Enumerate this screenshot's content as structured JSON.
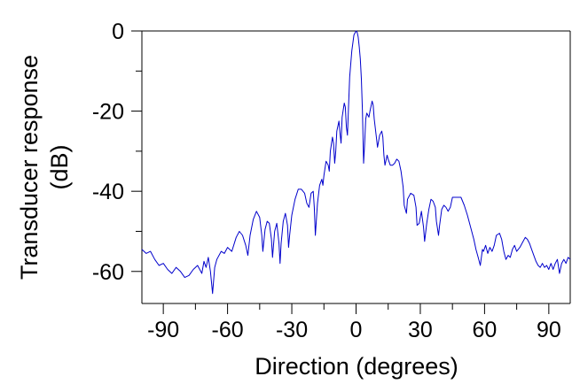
{
  "chart_data": {
    "type": "line",
    "title": "",
    "xlabel": "Direction (degrees)",
    "ylabel_lines": [
      "Transducer response",
      "(dB)"
    ],
    "xlim": [
      -100,
      100
    ],
    "ylim": [
      -68,
      0
    ],
    "grid": false,
    "x_ticks_major": [
      {
        "value": -90,
        "label": "-90"
      },
      {
        "value": -60,
        "label": "-60"
      },
      {
        "value": -30,
        "label": "-30"
      },
      {
        "value": 0,
        "label": "0"
      },
      {
        "value": 30,
        "label": "30"
      },
      {
        "value": 60,
        "label": "60"
      },
      {
        "value": 90,
        "label": "90"
      }
    ],
    "x_ticks_minor": [
      -75,
      -45,
      -15,
      15,
      45,
      75
    ],
    "y_ticks_major": [
      {
        "value": 0,
        "label": "0"
      },
      {
        "value": -20,
        "label": "-20"
      },
      {
        "value": -40,
        "label": "-40"
      },
      {
        "value": -60,
        "label": "-60"
      }
    ],
    "y_ticks_minor": [
      -10,
      -30,
      -50
    ],
    "series": [
      {
        "color": "#0000cc",
        "points": [
          [
            -100,
            -54.5
          ],
          [
            -98,
            -55.5
          ],
          [
            -96,
            -55
          ],
          [
            -94,
            -57
          ],
          [
            -92,
            -58.5
          ],
          [
            -90,
            -58
          ],
          [
            -88,
            -59.5
          ],
          [
            -86,
            -60.5
          ],
          [
            -84,
            -59
          ],
          [
            -82,
            -60
          ],
          [
            -80,
            -61.5
          ],
          [
            -78,
            -61
          ],
          [
            -76,
            -59.5
          ],
          [
            -74,
            -58.5
          ],
          [
            -72,
            -60.5
          ],
          [
            -71,
            -57.5
          ],
          [
            -70,
            -59
          ],
          [
            -69,
            -56.5
          ],
          [
            -68,
            -60
          ],
          [
            -67,
            -65.5
          ],
          [
            -66,
            -59
          ],
          [
            -65,
            -57
          ],
          [
            -63,
            -55
          ],
          [
            -61.5,
            -55.5
          ],
          [
            -60,
            -54
          ],
          [
            -58,
            -55
          ],
          [
            -56,
            -51.5
          ],
          [
            -54.5,
            -50
          ],
          [
            -53,
            -51
          ],
          [
            -51.5,
            -53.5
          ],
          [
            -50.5,
            -56
          ],
          [
            -49.5,
            -51
          ],
          [
            -48,
            -47
          ],
          [
            -46.5,
            -45
          ],
          [
            -45,
            -46.5
          ],
          [
            -44,
            -51
          ],
          [
            -43.5,
            -55
          ],
          [
            -42.5,
            -49.5
          ],
          [
            -41.5,
            -47.5
          ],
          [
            -40.5,
            -48
          ],
          [
            -39.5,
            -52
          ],
          [
            -39,
            -56.5
          ],
          [
            -38,
            -50
          ],
          [
            -37,
            -48
          ],
          [
            -36,
            -53
          ],
          [
            -35.5,
            -58
          ],
          [
            -35,
            -53
          ],
          [
            -34,
            -47.5
          ],
          [
            -33,
            -45.5
          ],
          [
            -32,
            -48.5
          ],
          [
            -31.5,
            -54
          ],
          [
            -31,
            -51
          ],
          [
            -30,
            -46
          ],
          [
            -28.5,
            -42
          ],
          [
            -27,
            -39.5
          ],
          [
            -25.5,
            -39.5
          ],
          [
            -24,
            -40.5
          ],
          [
            -23,
            -43
          ],
          [
            -22,
            -44
          ],
          [
            -21,
            -40.5
          ],
          [
            -20,
            -40
          ],
          [
            -19.5,
            -44
          ],
          [
            -19,
            -51
          ],
          [
            -18,
            -43
          ],
          [
            -17,
            -38.5
          ],
          [
            -16,
            -37
          ],
          [
            -15.5,
            -38.5
          ],
          [
            -15,
            -36
          ],
          [
            -14,
            -32.5
          ],
          [
            -13,
            -33.5
          ],
          [
            -12.5,
            -35
          ],
          [
            -12,
            -30
          ],
          [
            -11,
            -26.5
          ],
          [
            -10.5,
            -28
          ],
          [
            -10,
            -33
          ],
          [
            -9.5,
            -30
          ],
          [
            -9,
            -25
          ],
          [
            -8,
            -22.5
          ],
          [
            -7.5,
            -25.5
          ],
          [
            -7,
            -28
          ],
          [
            -6.5,
            -21.5
          ],
          [
            -5.5,
            -18
          ],
          [
            -5,
            -19
          ],
          [
            -4.5,
            -24
          ],
          [
            -4,
            -26
          ],
          [
            -3.5,
            -19
          ],
          [
            -3,
            -11.5
          ],
          [
            -2,
            -5
          ],
          [
            -1,
            -1
          ],
          [
            0,
            0
          ],
          [
            0.5,
            -0.3
          ],
          [
            1,
            -1.5
          ],
          [
            1.5,
            -4
          ],
          [
            2,
            -7
          ],
          [
            2.5,
            -12
          ],
          [
            3,
            -20
          ],
          [
            3.5,
            -33
          ],
          [
            4,
            -28
          ],
          [
            4.5,
            -22
          ],
          [
            5,
            -20.5
          ],
          [
            6,
            -21.5
          ],
          [
            6.5,
            -20
          ],
          [
            7.5,
            -17.5
          ],
          [
            8,
            -18.5
          ],
          [
            8.5,
            -22
          ],
          [
            9.5,
            -26.5
          ],
          [
            10,
            -29
          ],
          [
            11,
            -26
          ],
          [
            12,
            -25
          ],
          [
            12.5,
            -26.5
          ],
          [
            13,
            -31
          ],
          [
            13.5,
            -33.5
          ],
          [
            14.5,
            -31
          ],
          [
            15,
            -32
          ],
          [
            16,
            -33.5
          ],
          [
            17,
            -33.5
          ],
          [
            18,
            -33
          ],
          [
            19,
            -32
          ],
          [
            20,
            -32.5
          ],
          [
            21,
            -35
          ],
          [
            22,
            -39
          ],
          [
            22.5,
            -43.5
          ],
          [
            23.5,
            -45.5
          ],
          [
            24,
            -42
          ],
          [
            25.5,
            -40.5
          ],
          [
            27,
            -41
          ],
          [
            28,
            -44
          ],
          [
            28.5,
            -48.5
          ],
          [
            29.5,
            -48
          ],
          [
            30.5,
            -45
          ],
          [
            31.5,
            -49
          ],
          [
            32,
            -52.5
          ],
          [
            33,
            -48
          ],
          [
            34,
            -44.5
          ],
          [
            35,
            -42
          ],
          [
            36,
            -42.5
          ],
          [
            37,
            -44
          ],
          [
            37.5,
            -47.5
          ],
          [
            38.5,
            -51
          ],
          [
            39,
            -48.5
          ],
          [
            40,
            -44.5
          ],
          [
            41,
            -43.5
          ],
          [
            42,
            -44
          ],
          [
            43,
            -45
          ],
          [
            44,
            -44
          ],
          [
            45,
            -41.5
          ],
          [
            47,
            -41.5
          ],
          [
            49,
            -41.5
          ],
          [
            50.5,
            -43.5
          ],
          [
            52,
            -46
          ],
          [
            53.5,
            -49
          ],
          [
            55,
            -52
          ],
          [
            56,
            -54.5
          ],
          [
            57,
            -56.5
          ],
          [
            58,
            -58.5
          ],
          [
            59,
            -54.5
          ],
          [
            59.5,
            -55
          ],
          [
            60.5,
            -53.5
          ],
          [
            61.5,
            -55.5
          ],
          [
            62.5,
            -54
          ],
          [
            63.5,
            -55
          ],
          [
            64.5,
            -53.5
          ],
          [
            65.5,
            -51
          ],
          [
            67,
            -50.5
          ],
          [
            68,
            -52
          ],
          [
            69,
            -55
          ],
          [
            70,
            -57
          ],
          [
            71,
            -56
          ],
          [
            72,
            -56.5
          ],
          [
            73,
            -54.5
          ],
          [
            74,
            -53.5
          ],
          [
            75,
            -55
          ],
          [
            76.5,
            -54
          ],
          [
            78,
            -52.5
          ],
          [
            79,
            -51.5
          ],
          [
            80,
            -52
          ],
          [
            81,
            -53
          ],
          [
            82,
            -54.5
          ],
          [
            83,
            -56
          ],
          [
            84,
            -57.5
          ],
          [
            85,
            -58.5
          ],
          [
            86,
            -59
          ],
          [
            87,
            -58
          ],
          [
            88,
            -59
          ],
          [
            89,
            -58.5
          ],
          [
            90,
            -59.5
          ],
          [
            91,
            -58
          ],
          [
            92,
            -59.5
          ],
          [
            93,
            -58
          ],
          [
            94,
            -57
          ],
          [
            95,
            -60.5
          ],
          [
            96,
            -58
          ],
          [
            97,
            -57
          ],
          [
            98,
            -58
          ],
          [
            99,
            -56.5
          ],
          [
            100,
            -57
          ]
        ]
      }
    ]
  }
}
